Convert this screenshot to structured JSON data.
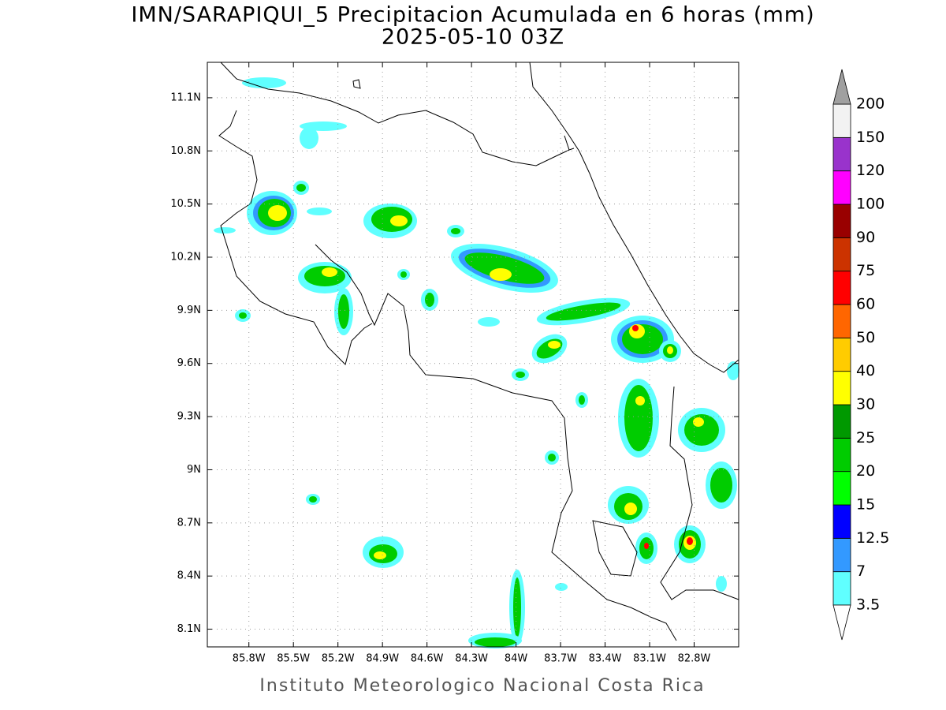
{
  "title": "IMN/SARAPIQUI_5 Precipitacion Acumulada en 6 horas (mm)",
  "subtitle": "2025-05-10 03Z",
  "map": {
    "xlim": [
      -86.08,
      -82.5
    ],
    "ylim": [
      8.0,
      11.3
    ],
    "grid": true,
    "xticks": [
      {
        "value": -85.8,
        "label": "85.8W"
      },
      {
        "value": -85.5,
        "label": "85.5W"
      },
      {
        "value": -85.2,
        "label": "85.2W"
      },
      {
        "value": -84.9,
        "label": "84.9W"
      },
      {
        "value": -84.6,
        "label": "84.6W"
      },
      {
        "value": -84.3,
        "label": "84.3W"
      },
      {
        "value": -84,
        "label": "84W"
      },
      {
        "value": -83.7,
        "label": "83.7W"
      },
      {
        "value": -83.4,
        "label": "83.4W"
      },
      {
        "value": -83.1,
        "label": "83.1W"
      },
      {
        "value": -82.8,
        "label": "82.8W"
      }
    ],
    "yticks": [
      {
        "value": 8.1,
        "label": "8.1N"
      },
      {
        "value": 8.4,
        "label": "8.4N"
      },
      {
        "value": 8.7,
        "label": "8.7N"
      },
      {
        "value": 9,
        "label": "9N"
      },
      {
        "value": 9.3,
        "label": "9.3N"
      },
      {
        "value": 9.6,
        "label": "9.6N"
      },
      {
        "value": 9.9,
        "label": "9.9N"
      },
      {
        "value": 10.2,
        "label": "10.2N"
      },
      {
        "value": 10.5,
        "label": "10.5N"
      },
      {
        "value": 10.8,
        "label": "10.8N"
      },
      {
        "value": 11.1,
        "label": "11.1N"
      }
    ]
  },
  "colorbar": {
    "levels": [
      3.5,
      7,
      12.5,
      15,
      20,
      25,
      30,
      40,
      50,
      60,
      75,
      90,
      100,
      120,
      150,
      200
    ],
    "colors": [
      "#60ffff",
      "#3399ff",
      "#0000ff",
      "#00ff00",
      "#00cc00",
      "#009900",
      "#ffff00",
      "#ffcc00",
      "#ff6600",
      "#ff0000",
      "#cc3300",
      "#990000",
      "#ff00ff",
      "#9933cc",
      "#f2f2f2"
    ],
    "under_color": "#ffffff",
    "over_color": "#a0a0a0"
  },
  "footer": "Instituto Meteorologico Nacional Costa Rica"
}
